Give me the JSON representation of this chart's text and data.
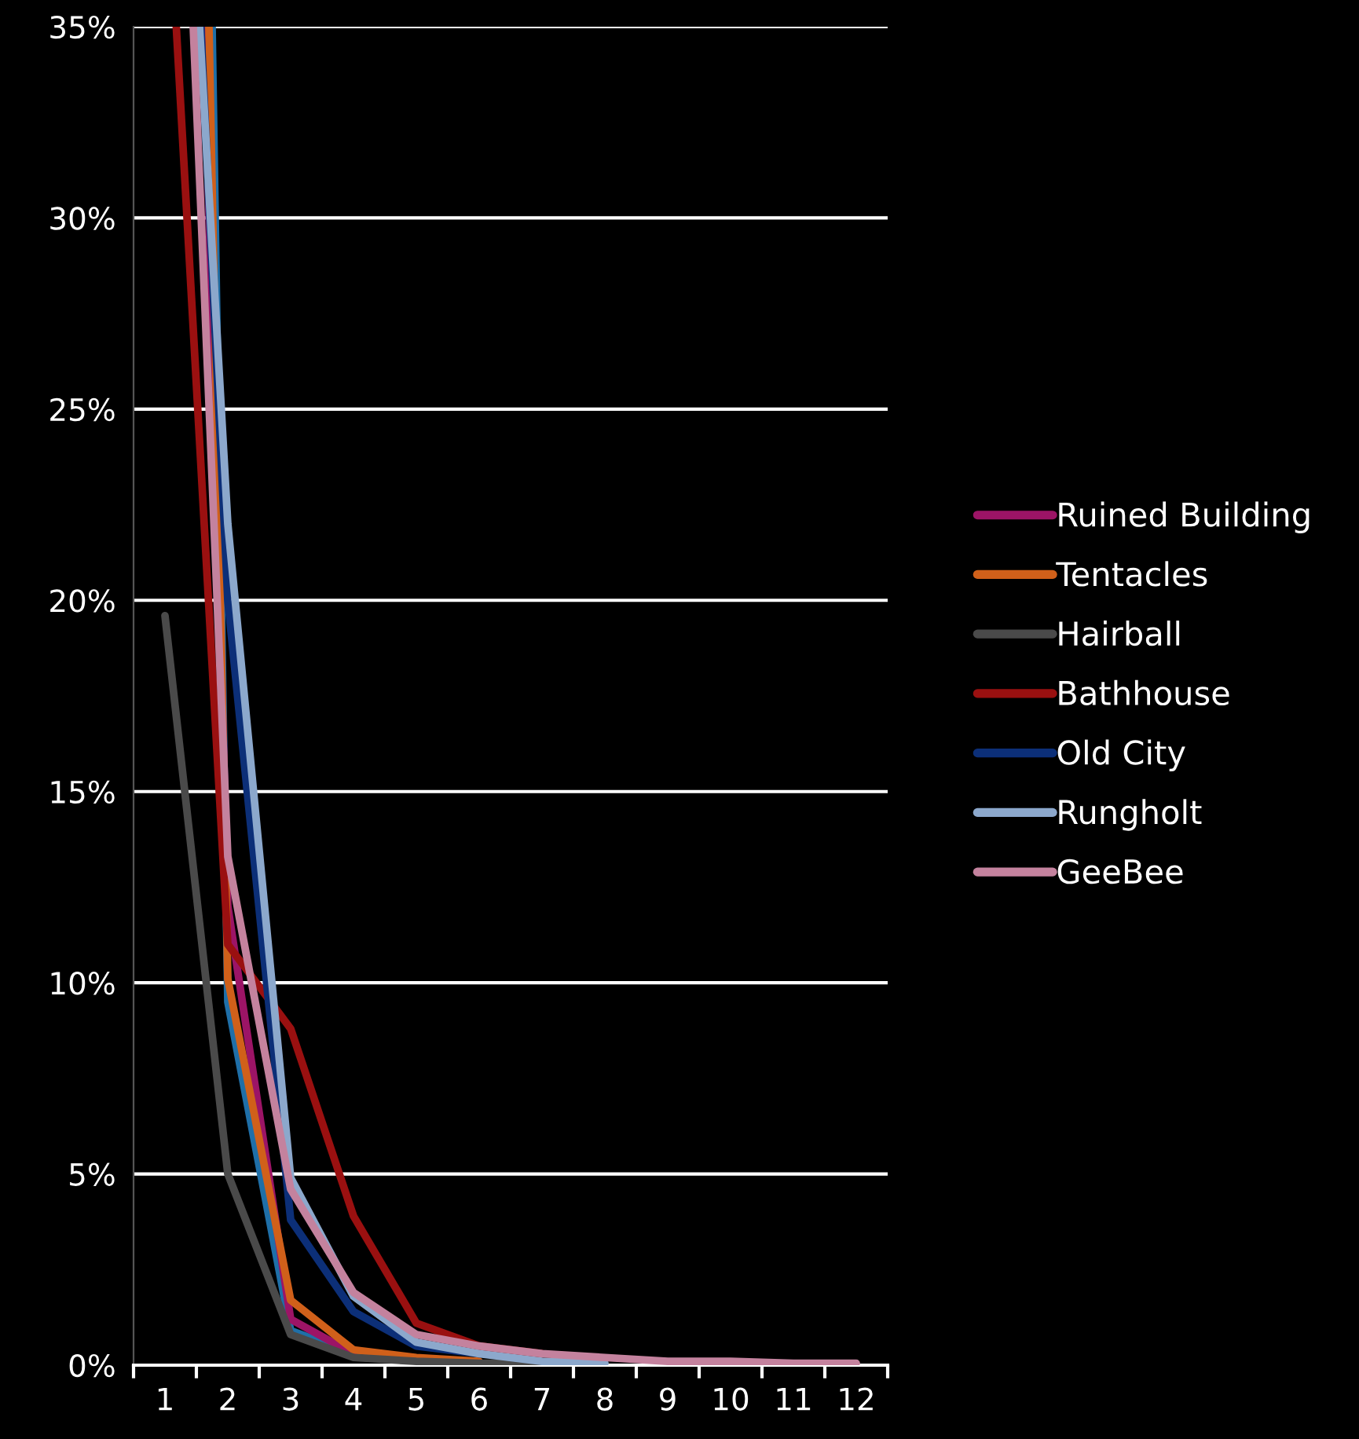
{
  "chart_data": {
    "type": "line",
    "xlim": [
      0.5,
      12.5
    ],
    "ylim": [
      0,
      35
    ],
    "xticks": [
      {
        "value": 0.5,
        "label": null
      },
      1,
      {
        "value": 1.5,
        "label": null
      },
      2,
      {
        "value": 2.5,
        "label": null
      },
      3,
      {
        "value": 3.5,
        "label": null
      },
      4,
      {
        "value": 4.5,
        "label": null
      },
      5,
      {
        "value": 5.5,
        "label": null
      },
      6,
      {
        "value": 6.5,
        "label": null
      },
      7,
      {
        "value": 7.5,
        "label": null
      },
      8,
      {
        "value": 8.5,
        "label": null
      },
      9,
      {
        "value": 9.5,
        "label": null
      },
      10,
      {
        "value": 10.5,
        "label": null
      },
      11,
      {
        "value": 11.5,
        "label": null
      },
      12,
      {
        "value": 12.5,
        "label": null
      }
    ],
    "yticks": [
      {
        "value": 0,
        "label": "0%"
      },
      {
        "value": 5,
        "label": "5%"
      },
      {
        "value": 10,
        "label": "10%"
      },
      {
        "value": 15,
        "label": "15%"
      },
      {
        "value": 20,
        "label": "20%"
      },
      {
        "value": 25,
        "label": "25%"
      },
      {
        "value": 30,
        "label": "30%"
      },
      {
        "value": 35,
        "label": "35%"
      }
    ],
    "grid": "y",
    "legend": "right",
    "marker": "none",
    "line_style": "solid",
    "series": [
      {
        "color": "#1f6fa8",
        "x": [
          1.75,
          2,
          3,
          4
        ],
        "values": [
          35,
          9.5,
          0.9,
          0.3
        ]
      },
      {
        "name": "Ruined Building",
        "color": "#9c1466",
        "x": [
          1.62,
          2,
          3,
          4
        ],
        "values": [
          35,
          12,
          1.2,
          0.3
        ]
      },
      {
        "name": "Tentacles",
        "color": "#d0601a",
        "x": [
          1.7,
          2,
          3,
          4,
          5,
          6
        ],
        "values": [
          35,
          10.1,
          1.7,
          0.4,
          0.2,
          0.1
        ]
      },
      {
        "name": "Hairball",
        "color": "#4a4a4a",
        "x": [
          1,
          2,
          3,
          4,
          5,
          6,
          7
        ],
        "values": [
          19.6,
          5,
          0.8,
          0.2,
          0.1,
          0.05,
          0.05
        ]
      },
      {
        "name": "Bathhouse",
        "color": "#9a1010",
        "x": [
          1.18,
          2,
          3,
          4,
          5,
          6,
          7
        ],
        "values": [
          35,
          11,
          8.8,
          3.9,
          1.1,
          0.5,
          0.3
        ]
      },
      {
        "name": "Old City",
        "color": "#0c2f78",
        "x": [
          1.57,
          2,
          3,
          4,
          5,
          6
        ],
        "values": [
          35,
          20,
          3.8,
          1.4,
          0.5,
          0.3
        ]
      },
      {
        "name": "Rungholt",
        "color": "#8ca8cc",
        "x": [
          1.55,
          2,
          3,
          4,
          5,
          6,
          7,
          8
        ],
        "values": [
          35,
          22,
          4.9,
          1.8,
          0.6,
          0.3,
          0.1,
          0.05
        ]
      },
      {
        "name": "GeeBee",
        "color": "#c4829e",
        "x": [
          1.45,
          2,
          3,
          4,
          5,
          6,
          7,
          8,
          9,
          10,
          11,
          12
        ],
        "values": [
          35,
          13.3,
          4.6,
          1.9,
          0.8,
          0.5,
          0.3,
          0.2,
          0.1,
          0.1,
          0.05,
          0.05
        ]
      }
    ]
  }
}
